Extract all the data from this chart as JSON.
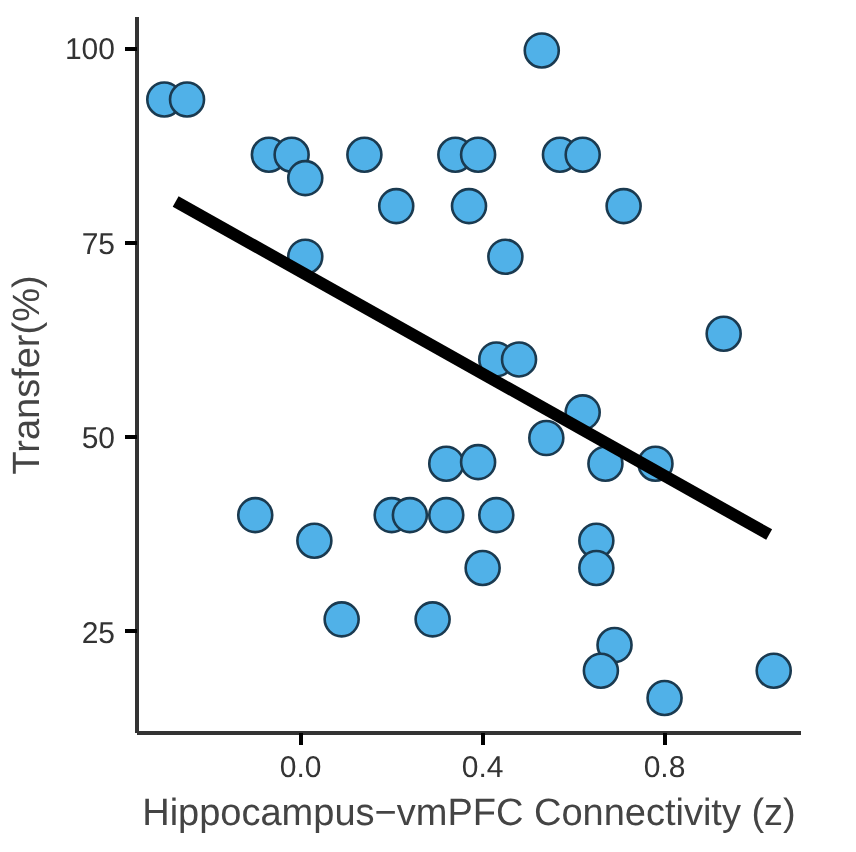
{
  "chart_data": {
    "type": "scatter",
    "xlabel": "Hippocampus−vmPFC Connectivity (z)",
    "ylabel": "Transfer(%)",
    "xlim": [
      -0.36,
      1.1
    ],
    "ylim": [
      12,
      104
    ],
    "xticks": [
      {
        "value": 0,
        "label": "0.0"
      },
      {
        "value": 0.4,
        "label": "0.4"
      },
      {
        "value": 0.8,
        "label": "0.8"
      }
    ],
    "yticks": [
      25,
      50,
      75,
      100
    ],
    "grid": false,
    "series": [
      {
        "marker": "circle",
        "color": "#50b1e8",
        "x": [
          -0.3,
          -0.25,
          -0.07,
          -0.02,
          0.01,
          0.14,
          0.21,
          0.01,
          0.53,
          0.34,
          0.39,
          0.57,
          0.62,
          0.37,
          0.71,
          0.45,
          0.93,
          0.43,
          0.48,
          -0.1,
          0.03,
          0.09,
          0.29,
          0.2,
          0.24,
          0.32,
          0.32,
          0.62,
          0.54,
          0.39,
          0.67,
          0.78,
          0.43,
          0.65,
          0.65,
          0.4,
          0.69,
          0.66,
          0.8,
          1.04
        ],
        "values": [
          93.4,
          93.4,
          86.3,
          86.3,
          83.3,
          86.3,
          79.7,
          73.2,
          99.7,
          86.3,
          86.3,
          86.3,
          86.3,
          79.7,
          79.7,
          73.2,
          63.3,
          60,
          60,
          40,
          36.7,
          26.6,
          26.6,
          40,
          40,
          40,
          46.6,
          53.2,
          49.9,
          46.8,
          46.6,
          46.6,
          40,
          36.7,
          33.2,
          33.2,
          23.3,
          20,
          16.5,
          20
        ]
      },
      {
        "type": "line",
        "marker": "none",
        "color": "#000000",
        "x": [
          -0.275,
          1.03
        ],
        "values": [
          80.3,
          37.5
        ]
      }
    ]
  }
}
